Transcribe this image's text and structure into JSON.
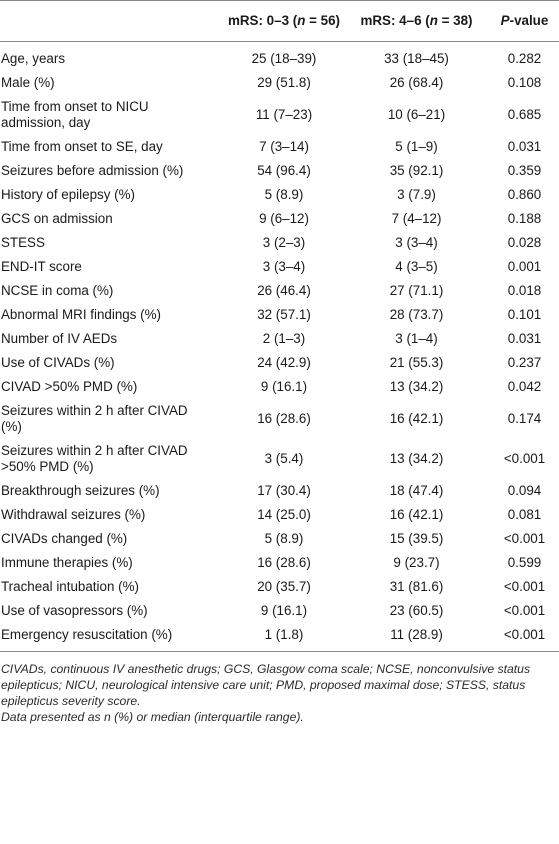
{
  "header": {
    "col1": "",
    "col2": "mRS: 0–3 (n = 56)",
    "col3": "mRS: 4–6 (n = 38)",
    "col4": "P-value"
  },
  "rows": [
    {
      "label": "Age, years",
      "g1": "25 (18–39)",
      "g2": "33 (18–45)",
      "p": "0.282"
    },
    {
      "label": "Male (%)",
      "g1": "29 (51.8)",
      "g2": "26 (68.4)",
      "p": "0.108"
    },
    {
      "label": "Time from onset to NICU admission, day",
      "g1": "11 (7–23)",
      "g2": "10 (6–21)",
      "p": "0.685"
    },
    {
      "label": "Time from onset to SE, day",
      "g1": "7 (3–14)",
      "g2": "5 (1–9)",
      "p": "0.031"
    },
    {
      "label": "Seizures before admission (%)",
      "g1": "54 (96.4)",
      "g2": "35 (92.1)",
      "p": "0.359"
    },
    {
      "label": "History of epilepsy (%)",
      "g1": "5 (8.9)",
      "g2": "3 (7.9)",
      "p": "0.860"
    },
    {
      "label": "GCS on admission",
      "g1": "9 (6–12)",
      "g2": "7 (4–12)",
      "p": "0.188"
    },
    {
      "label": "STESS",
      "g1": "3 (2–3)",
      "g2": "3 (3–4)",
      "p": "0.028"
    },
    {
      "label": "END-IT score",
      "g1": "3 (3–4)",
      "g2": "4 (3–5)",
      "p": "0.001"
    },
    {
      "label": "NCSE in coma (%)",
      "g1": "26 (46.4)",
      "g2": "27 (71.1)",
      "p": "0.018"
    },
    {
      "label": "Abnormal MRI findings (%)",
      "g1": "32 (57.1)",
      "g2": "28 (73.7)",
      "p": "0.101"
    },
    {
      "label": "Number of IV AEDs",
      "g1": "2 (1–3)",
      "g2": "3 (1–4)",
      "p": "0.031"
    },
    {
      "label": "Use of CIVADs (%)",
      "g1": "24 (42.9)",
      "g2": "21 (55.3)",
      "p": "0.237"
    },
    {
      "label": "CIVAD >50% PMD (%)",
      "g1": "9 (16.1)",
      "g2": "13 (34.2)",
      "p": "0.042"
    },
    {
      "label": "Seizures within 2 h after CIVAD (%)",
      "g1": "16 (28.6)",
      "g2": "16 (42.1)",
      "p": "0.174"
    },
    {
      "label": "Seizures within 2 h after CIVAD >50% PMD (%)",
      "g1": "3 (5.4)",
      "g2": "13 (34.2)",
      "p": "<0.001"
    },
    {
      "label": "Breakthrough seizures (%)",
      "g1": "17 (30.4)",
      "g2": "18 (47.4)",
      "p": "0.094"
    },
    {
      "label": "Withdrawal seizures (%)",
      "g1": "14 (25.0)",
      "g2": "16 (42.1)",
      "p": "0.081"
    },
    {
      "label": "CIVADs changed (%)",
      "g1": "5 (8.9)",
      "g2": "15 (39.5)",
      "p": "<0.001"
    },
    {
      "label": "Immune therapies (%)",
      "g1": "16 (28.6)",
      "g2": "9 (23.7)",
      "p": "0.599"
    },
    {
      "label": "Tracheal intubation (%)",
      "g1": "20 (35.7)",
      "g2": "31 (81.6)",
      "p": "<0.001"
    },
    {
      "label": "Use of vasopressors (%)",
      "g1": "9 (16.1)",
      "g2": "23 (60.5)",
      "p": "<0.001"
    },
    {
      "label": "Emergency resuscitation (%)",
      "g1": "1 (1.8)",
      "g2": "11 (28.9)",
      "p": "<0.001"
    }
  ],
  "footnotes": {
    "abbreviations": "CIVADs, continuous IV anesthetic drugs; GCS, Glasgow coma scale; NCSE, nonconvulsive status epilepticus; NICU, neurological intensive care unit; PMD, proposed maximal dose; STESS, status epilepticus severity score.",
    "data_note": "Data presented as n (%) or median (interquartile range)."
  }
}
